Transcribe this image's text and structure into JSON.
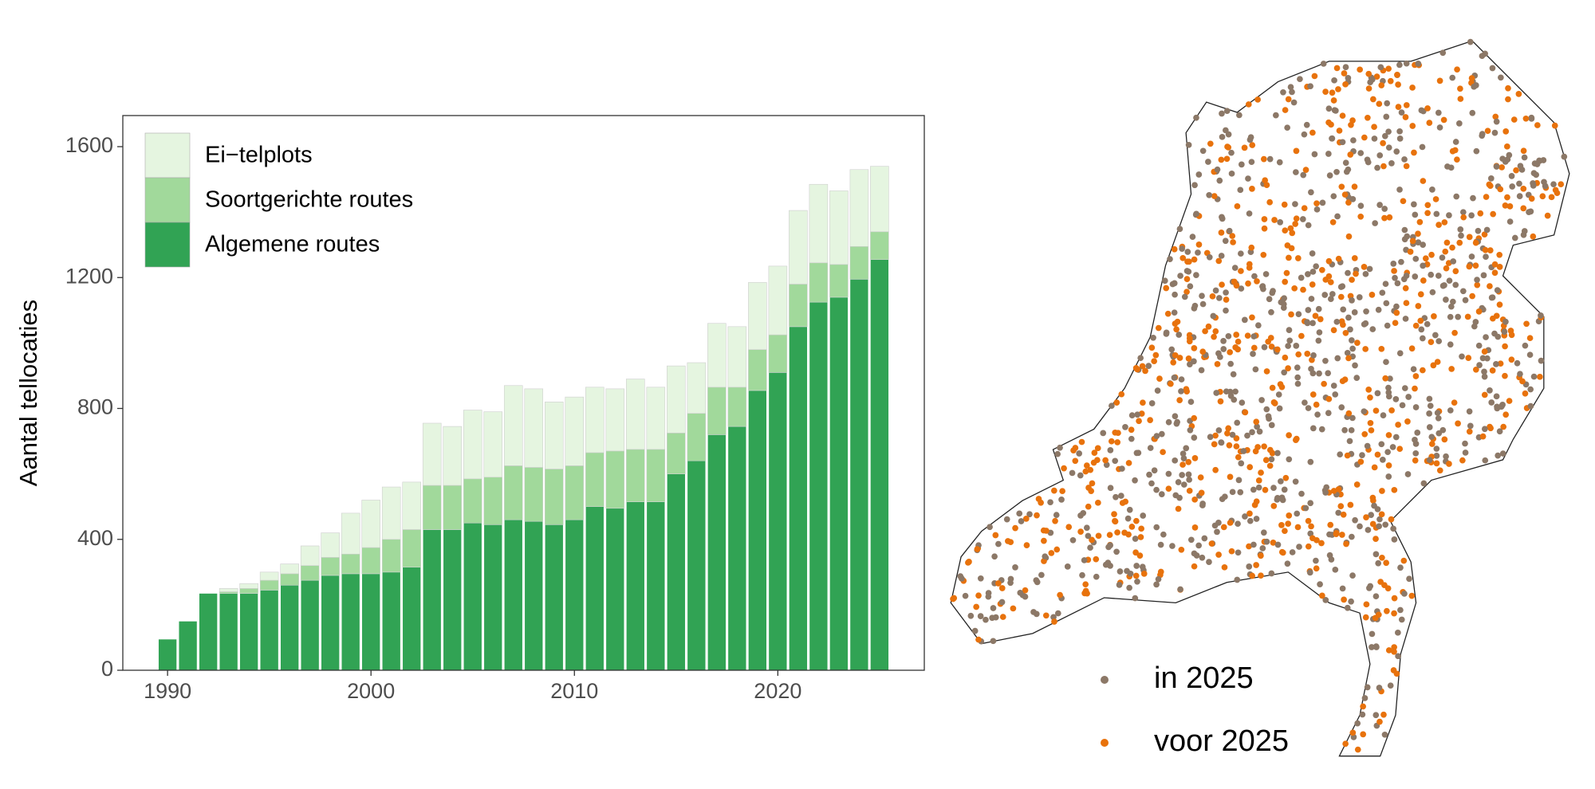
{
  "chart_data": {
    "type": "bar",
    "stacked": true,
    "ylabel": "Aantal tellocaties",
    "x": [
      1990,
      1991,
      1992,
      1993,
      1994,
      1995,
      1996,
      1997,
      1998,
      1999,
      2000,
      2001,
      2002,
      2003,
      2004,
      2005,
      2006,
      2007,
      2008,
      2009,
      2010,
      2011,
      2012,
      2013,
      2014,
      2015,
      2016,
      2017,
      2018,
      2019,
      2020,
      2021,
      2022,
      2023,
      2024,
      2025
    ],
    "series": [
      {
        "name": "Algemene routes",
        "color": "#31a354",
        "values": [
          95,
          150,
          235,
          235,
          235,
          245,
          260,
          275,
          290,
          295,
          295,
          300,
          315,
          430,
          430,
          450,
          445,
          460,
          455,
          445,
          460,
          500,
          495,
          515,
          515,
          600,
          640,
          720,
          745,
          855,
          910,
          1050,
          1125,
          1140,
          1195,
          1255
        ]
      },
      {
        "name": "Soortgerichte routes",
        "color": "#a1d99b",
        "values": [
          0,
          0,
          0,
          5,
          15,
          30,
          35,
          45,
          55,
          60,
          80,
          100,
          115,
          135,
          135,
          135,
          145,
          165,
          165,
          170,
          165,
          165,
          175,
          160,
          160,
          125,
          145,
          145,
          120,
          125,
          115,
          130,
          120,
          100,
          100,
          85
        ]
      },
      {
        "name": "Ei−telplots",
        "color": "#e5f5e0",
        "values": [
          0,
          0,
          0,
          10,
          15,
          25,
          30,
          60,
          75,
          125,
          145,
          160,
          145,
          190,
          180,
          210,
          200,
          245,
          240,
          205,
          210,
          200,
          190,
          215,
          190,
          205,
          155,
          195,
          185,
          205,
          210,
          225,
          240,
          225,
          235,
          200
        ]
      }
    ],
    "xlim": [
      1987.8,
      2027.2
    ],
    "xticks": [
      1990,
      2000,
      2010,
      2020
    ],
    "ylim": [
      0,
      1695
    ],
    "yticks": [
      0,
      400,
      800,
      1200,
      1600
    ],
    "legend": "top-left"
  },
  "map": {
    "legend": [
      {
        "label": "in 2025",
        "color": "#8c7867"
      },
      {
        "label": "voor 2025",
        "color": "#e8720c"
      }
    ]
  }
}
